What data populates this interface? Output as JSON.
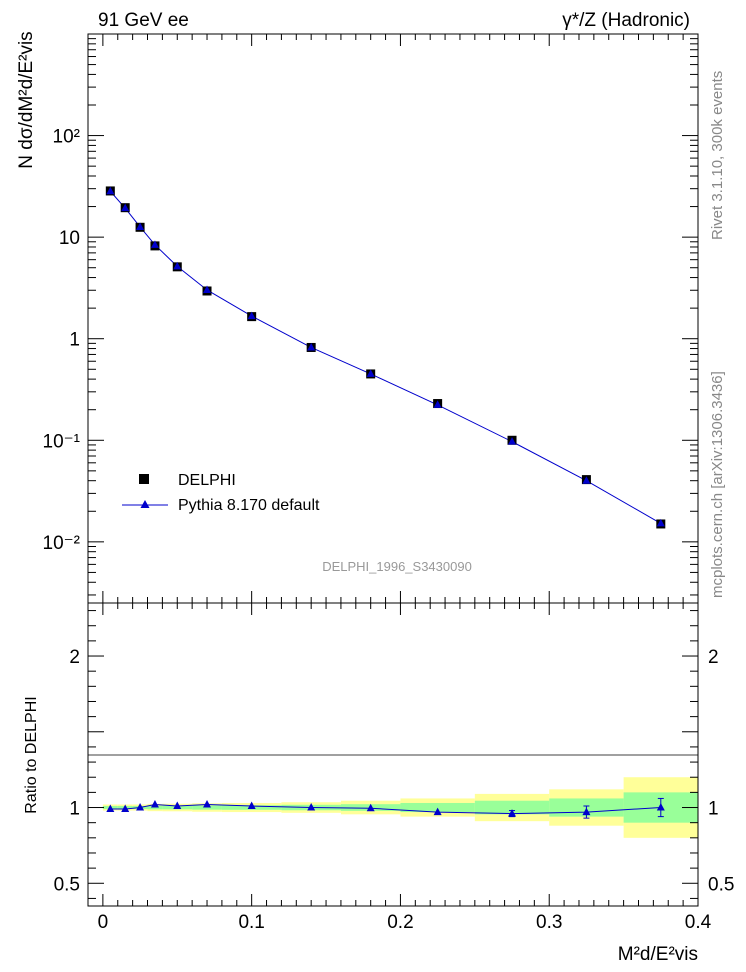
{
  "header": {
    "left_label": "91 GeV ee",
    "right_label": "γ*/Z (Hadronic)"
  },
  "side_labels": {
    "rivet": "Rivet 3.1.10,  300k events",
    "mcplots": "mcplots.cern.ch [arXiv:1306.3436]"
  },
  "watermark": "DELPHI_1996_S3430090",
  "legend": {
    "placement": "lower-left",
    "entries": [
      {
        "label": "DELPHI",
        "marker": "square",
        "color": "#000000"
      },
      {
        "label": "Pythia 8.170 default",
        "marker": "triangle",
        "color": "#0000cc"
      }
    ]
  },
  "colors": {
    "data": "#000000",
    "mc": "#0000cc",
    "band_inner": "#99ff99",
    "band_outer": "#ffff99"
  },
  "chart_data": [
    {
      "type": "scatter",
      "ylabel": "N dσ/dM²d/E²vis",
      "yscale": "log",
      "ylim": [
        0.0025,
        1000
      ],
      "xlim": [
        -0.01,
        0.4
      ],
      "ytick_labels": [
        "10⁻²",
        "10⁻¹",
        "1",
        "10",
        "10²"
      ],
      "x": [
        0.005,
        0.015,
        0.025,
        0.035,
        0.05,
        0.07,
        0.1,
        0.14,
        0.18,
        0.225,
        0.275,
        0.325,
        0.375
      ],
      "series": [
        {
          "name": "DELPHI",
          "values": [
            28.5,
            19.5,
            12.5,
            8.2,
            5.1,
            2.95,
            1.65,
            0.82,
            0.45,
            0.23,
            0.1,
            0.041,
            0.015
          ]
        },
        {
          "name": "Pythia 8.170 default",
          "values": [
            28.3,
            19.3,
            12.6,
            8.4,
            5.15,
            3.02,
            1.67,
            0.82,
            0.45,
            0.223,
            0.097,
            0.04,
            0.0152
          ]
        }
      ]
    },
    {
      "type": "line",
      "ylabel": "Ratio to DELPHI",
      "xlabel": "M²d/E²vis",
      "ylim": [
        0.35,
        2.35
      ],
      "xlim": [
        -0.01,
        0.4
      ],
      "ytick_labels": [
        "0.5",
        "1",
        "2"
      ],
      "xtick_labels": [
        "0",
        "0.1",
        "0.2",
        "0.3",
        "0.4"
      ],
      "x": [
        0.005,
        0.015,
        0.025,
        0.035,
        0.05,
        0.07,
        0.1,
        0.14,
        0.18,
        0.225,
        0.275,
        0.325,
        0.375
      ],
      "ratio": [
        0.99,
        0.99,
        1.0,
        1.02,
        1.01,
        1.02,
        1.01,
        1.0,
        0.995,
        0.97,
        0.96,
        0.97,
        1.0
      ],
      "ratio_err": [
        0.01,
        0.01,
        0.01,
        0.01,
        0.01,
        0.01,
        0.01,
        0.01,
        0.01,
        0.01,
        0.02,
        0.04,
        0.06
      ],
      "bands": {
        "edges": [
          0.0,
          0.01,
          0.02,
          0.03,
          0.04,
          0.06,
          0.08,
          0.12,
          0.16,
          0.2,
          0.25,
          0.3,
          0.35,
          0.4
        ],
        "inner": [
          0.01,
          0.01,
          0.01,
          0.012,
          0.012,
          0.014,
          0.015,
          0.018,
          0.022,
          0.03,
          0.045,
          0.06,
          0.1
        ],
        "outer": [
          0.02,
          0.02,
          0.02,
          0.024,
          0.025,
          0.028,
          0.03,
          0.035,
          0.045,
          0.06,
          0.09,
          0.12,
          0.2
        ]
      }
    }
  ]
}
